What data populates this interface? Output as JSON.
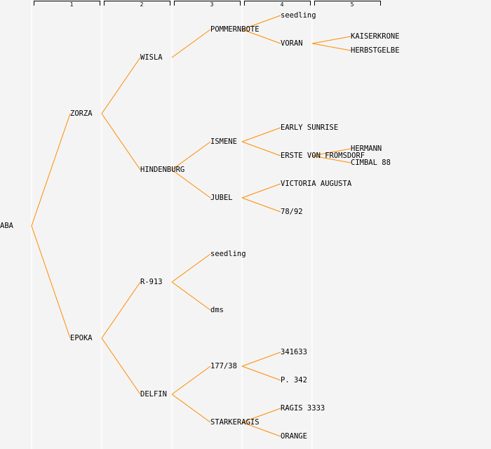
{
  "generations": [
    "1",
    "2",
    "3",
    "4",
    "5"
  ],
  "colors": {
    "line": "#ff8c00",
    "background": "#f4f4f4",
    "separator": "#ffffff"
  },
  "tree": {
    "name": "ABA",
    "children": [
      {
        "name": "ZORZA",
        "children": [
          {
            "name": "WISLA",
            "children": [
              {
                "name": "POMMERNBOTE",
                "children": [
                  {
                    "name": "seedling"
                  },
                  {
                    "name": "VORAN",
                    "children": [
                      {
                        "name": "KAISERKRONE"
                      },
                      {
                        "name": "HERBSTGELBE"
                      }
                    ]
                  }
                ]
              }
            ]
          },
          {
            "name": "HINDENBURG",
            "children": [
              {
                "name": "ISMENE",
                "children": [
                  {
                    "name": "EARLY SUNRISE"
                  },
                  {
                    "name": "ERSTE VON FROMSDORF",
                    "children": [
                      {
                        "name": "HERMANN"
                      },
                      {
                        "name": "CIMBAL 88"
                      }
                    ]
                  }
                ]
              },
              {
                "name": "JUBEL",
                "children": [
                  {
                    "name": "VICTORIA AUGUSTA"
                  },
                  {
                    "name": "78/92"
                  }
                ]
              }
            ]
          }
        ]
      },
      {
        "name": "EPOKA",
        "children": [
          {
            "name": "R-913",
            "children": [
              {
                "name": "seedling"
              },
              {
                "name": "dms"
              }
            ]
          },
          {
            "name": "DELFIN",
            "children": [
              {
                "name": "177/38",
                "children": [
                  {
                    "name": "341633"
                  },
                  {
                    "name": "P. 342"
                  }
                ]
              },
              {
                "name": "STARKERAGIS",
                "children": [
                  {
                    "name": "RAGIS 3333"
                  },
                  {
                    "name": "ORANGE"
                  }
                ]
              }
            ]
          }
        ]
      }
    ]
  }
}
